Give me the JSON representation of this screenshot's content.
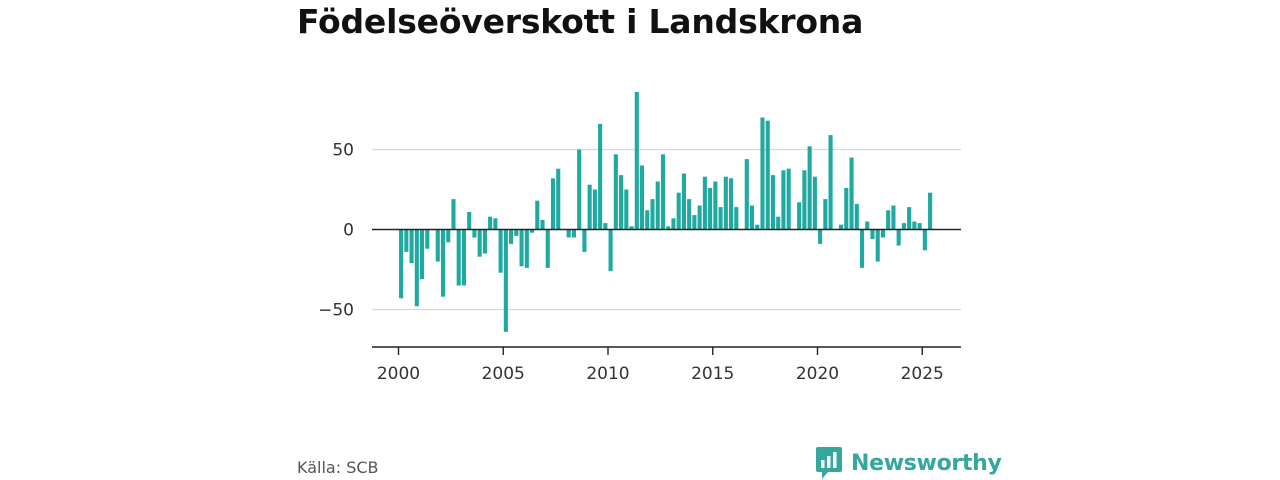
{
  "title": "Födelseöverskott i Landskrona",
  "source": "Källa: SCB",
  "brand": {
    "name": "Newsworthy",
    "icon": "newsworthy-logo-icon"
  },
  "colors": {
    "bar": "#1fa9a0",
    "grid": "#d9d9d9",
    "axis": "#222222",
    "brand": "#36a79c"
  },
  "chart_data": {
    "type": "bar",
    "title": "Födelseöverskott i Landskrona",
    "xlabel": "",
    "ylabel": "",
    "x_ticks": [
      2000,
      2005,
      2010,
      2015,
      2020,
      2025
    ],
    "y_ticks": [
      -50,
      0,
      50
    ],
    "y_tick_labels": [
      "−50",
      "0",
      "50"
    ],
    "xlim": [
      1998.75,
      2026.75
    ],
    "ylim": [
      -74,
      88
    ],
    "grid": true,
    "series": [
      {
        "frequency": "quarterly",
        "x": [
          2000.0,
          2000.25,
          2000.5,
          2000.75,
          2001.0,
          2001.25,
          2001.5,
          2001.75,
          2002.0,
          2002.25,
          2002.5,
          2002.75,
          2003.0,
          2003.25,
          2003.5,
          2003.75,
          2004.0,
          2004.25,
          2004.5,
          2004.75,
          2005.0,
          2005.25,
          2005.5,
          2005.75,
          2006.0,
          2006.25,
          2006.5,
          2006.75,
          2007.0,
          2007.25,
          2007.5,
          2007.75,
          2008.0,
          2008.25,
          2008.5,
          2008.75,
          2009.0,
          2009.25,
          2009.5,
          2009.75,
          2010.0,
          2010.25,
          2010.5,
          2010.75,
          2011.0,
          2011.25,
          2011.5,
          2011.75,
          2012.0,
          2012.25,
          2012.5,
          2012.75,
          2013.0,
          2013.25,
          2013.5,
          2013.75,
          2014.0,
          2014.25,
          2014.5,
          2014.75,
          2015.0,
          2015.25,
          2015.5,
          2015.75,
          2016.0,
          2016.25,
          2016.5,
          2016.75,
          2017.0,
          2017.25,
          2017.5,
          2017.75,
          2018.0,
          2018.25,
          2018.5,
          2018.75,
          2019.0,
          2019.25,
          2019.5,
          2019.75,
          2020.0,
          2020.25,
          2020.5,
          2020.75,
          2021.0,
          2021.25,
          2021.5,
          2021.75,
          2022.0,
          2022.25,
          2022.5,
          2022.75,
          2023.0,
          2023.25,
          2023.5,
          2023.75,
          2024.0,
          2024.25,
          2024.5,
          2024.75,
          2025.0,
          2025.25
        ],
        "values": [
          -43,
          -14,
          -21,
          -48,
          -31,
          -12,
          0,
          -20,
          -42,
          -8,
          19,
          -35,
          -35,
          11,
          -5,
          -17,
          -15,
          8,
          7,
          -27,
          -64,
          -9,
          -4,
          -23,
          -24,
          -2,
          18,
          6,
          -24,
          32,
          38,
          0,
          -5,
          -5,
          50,
          -14,
          28,
          25,
          66,
          4,
          -26,
          47,
          34,
          25,
          2,
          86,
          40,
          12,
          19,
          30,
          47,
          2,
          7,
          23,
          35,
          19,
          9,
          15,
          33,
          26,
          30,
          14,
          33,
          32,
          14,
          0,
          44,
          15,
          3,
          70,
          68,
          34,
          8,
          37,
          38,
          0,
          17,
          37,
          52,
          33,
          -9,
          19,
          59,
          0,
          3,
          26,
          45,
          16,
          -24,
          5,
          -6,
          -20,
          -5,
          12,
          15,
          -10,
          4,
          14,
          5,
          4,
          -13,
          23
        ]
      }
    ]
  }
}
